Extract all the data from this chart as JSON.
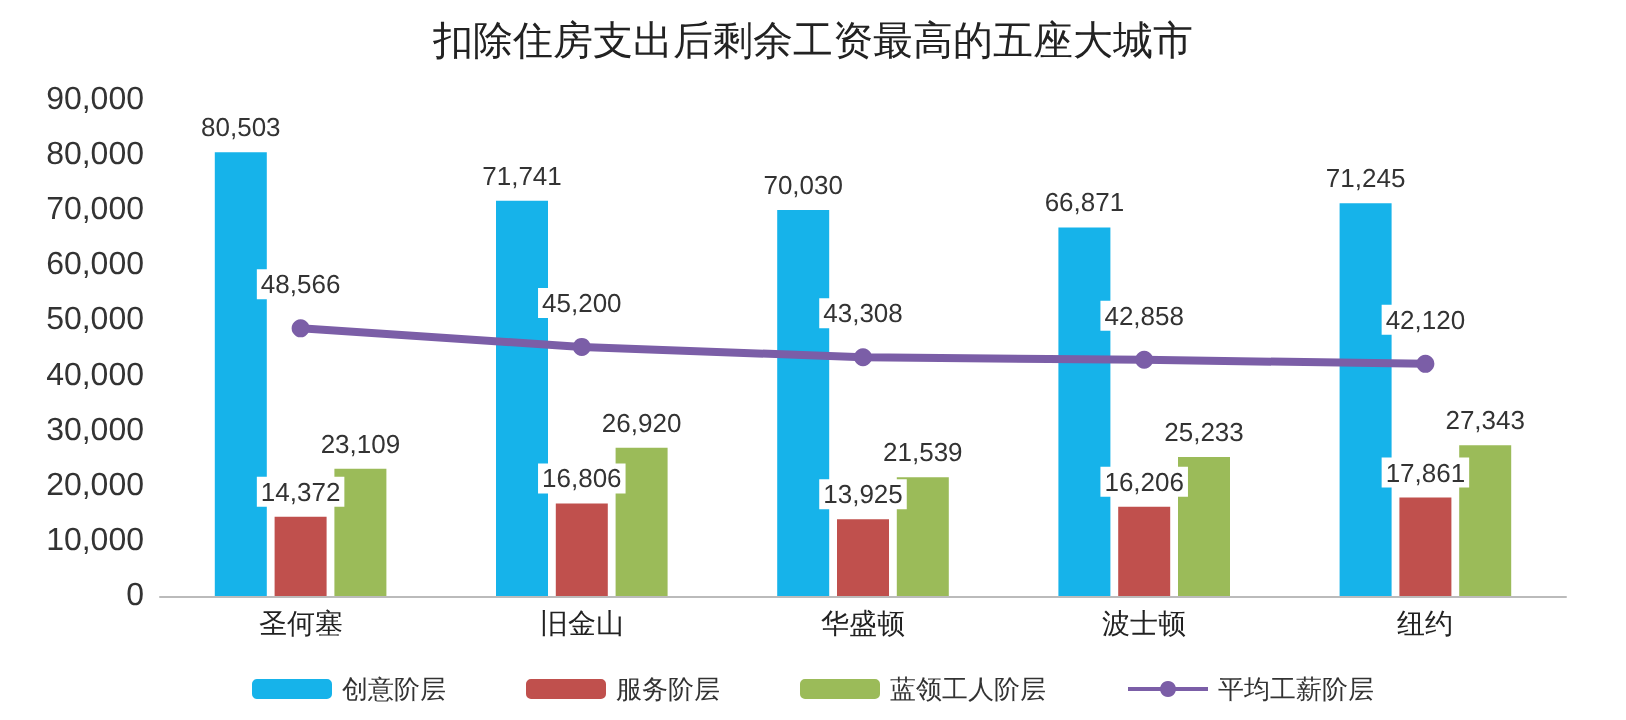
{
  "chart_data": {
    "type": "bar",
    "title": "扣除住房支出后剩余工资最高的五座大城市",
    "categories": [
      "圣何塞",
      "旧金山",
      "华盛顿",
      "波士顿",
      "纽约"
    ],
    "series": [
      {
        "name": "创意阶层",
        "color": "#16b3ea",
        "values": [
          80503,
          71741,
          70030,
          66871,
          71245
        ],
        "value_labels": [
          "80,503",
          "71,741",
          "70,030",
          "66,871",
          "71,245"
        ]
      },
      {
        "name": "服务阶层",
        "color": "#c0504d",
        "values": [
          14372,
          16806,
          13925,
          16206,
          17861
        ],
        "value_labels": [
          "14,372",
          "16,806",
          "13,925",
          "16,206",
          "17,861"
        ]
      },
      {
        "name": "蓝领工人阶层",
        "color": "#9bbb59",
        "values": [
          23109,
          26920,
          21539,
          25233,
          27343
        ],
        "value_labels": [
          "23,109",
          "26,920",
          "21,539",
          "25,233",
          "27,343"
        ]
      },
      {
        "name": "平均工薪阶层",
        "type": "line",
        "color": "#7b5ea7",
        "values": [
          48566,
          45200,
          43308,
          42858,
          42120
        ],
        "value_labels": [
          "48,566",
          "45,200",
          "43,308",
          "42,858",
          "42,120"
        ]
      }
    ],
    "ylim": [
      0,
      90000
    ],
    "yticks": [
      {
        "value": 0,
        "label": "0"
      },
      {
        "value": 10000,
        "label": "10,000"
      },
      {
        "value": 20000,
        "label": "20,000"
      },
      {
        "value": 30000,
        "label": "30,000"
      },
      {
        "value": 40000,
        "label": "40,000"
      },
      {
        "value": 50000,
        "label": "50,000"
      },
      {
        "value": 60000,
        "label": "60,000"
      },
      {
        "value": 70000,
        "label": "70,000"
      },
      {
        "value": 80000,
        "label": "80,000"
      },
      {
        "value": 90000,
        "label": "90,000"
      }
    ],
    "grid": false,
    "legend": "bottom",
    "marker": "circle"
  }
}
